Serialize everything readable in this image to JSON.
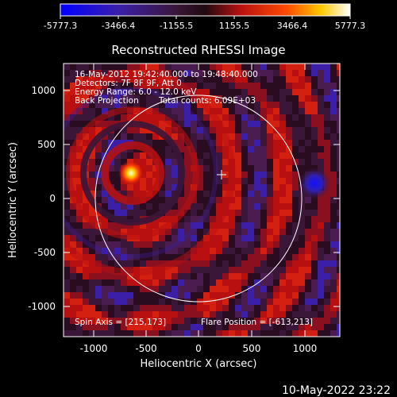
{
  "colorbar": {
    "tick_labels": [
      "-5777.3",
      "-3466.4",
      "-1155.5",
      "1155.5",
      "3466.4",
      "5777.3"
    ],
    "min": -5777.3,
    "max": 5777.3
  },
  "title": "Reconstructed RHESSI Image",
  "info": {
    "line1": "16-May-2012 19:42:40.000 to 19:48:40.000",
    "line2": "Detectors: 7F 8F 9F, Att 0",
    "line3": "Energy Range: 6.0 - 12.0 keV",
    "line4a": "Back Projection",
    "line4b": "Total counts: 6.09E+03"
  },
  "footer_left": "Spin Axis = [215,173]",
  "footer_right": "Flare Position = [-613,213]",
  "axes": {
    "xlabel": "Heliocentric X (arcsec)",
    "ylabel": "Heliocentric Y (arcsec)",
    "x_ticks": [
      "-1000",
      "-500",
      "0",
      "500",
      "1000"
    ],
    "y_ticks": [
      "1000",
      "500",
      "0",
      "-500",
      "-1000"
    ],
    "xlim": [
      -1280,
      1280
    ],
    "ylim": [
      -1280,
      1280
    ]
  },
  "timestamp": "10-May-2022 23:22",
  "colors": {
    "background": "#000000",
    "foreground": "#ffffff"
  }
}
